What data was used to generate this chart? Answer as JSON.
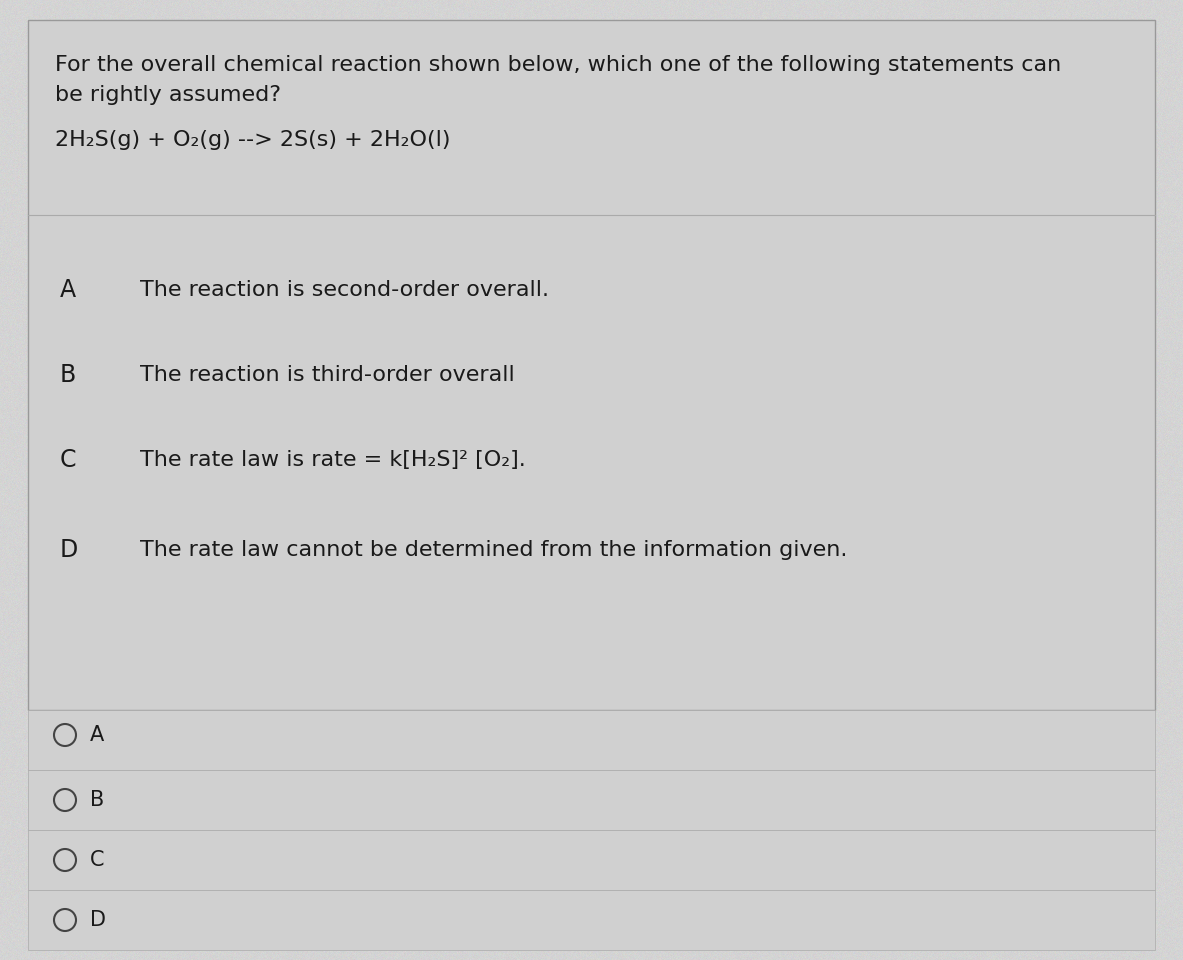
{
  "bg_color": "#b8b8b8",
  "card_bg": "#d4d4d4",
  "text_color": "#1a1a1a",
  "divider_color": "#aaaaaa",
  "title_line1": "For the overall chemical reaction shown below, which one of the following statements can",
  "title_line2": "be rightly assumed?",
  "reaction": "2H₂S(g) + O₂(g) --> 2S(s) + 2H₂O(l)",
  "options": [
    {
      "label": "A",
      "text": "The reaction is second-order overall."
    },
    {
      "label": "B",
      "text": "The reaction is third-order overall"
    },
    {
      "label": "C",
      "text": "The rate law is rate = k[H₂S]² [O₂]."
    },
    {
      "label": "D",
      "text": "The rate law cannot be determined from the information given."
    }
  ],
  "answer_options": [
    "A",
    "B",
    "C",
    "D"
  ],
  "font_size_title": 16,
  "font_size_reaction": 16,
  "font_size_options": 16,
  "font_size_labels": 17,
  "font_size_answers": 15
}
